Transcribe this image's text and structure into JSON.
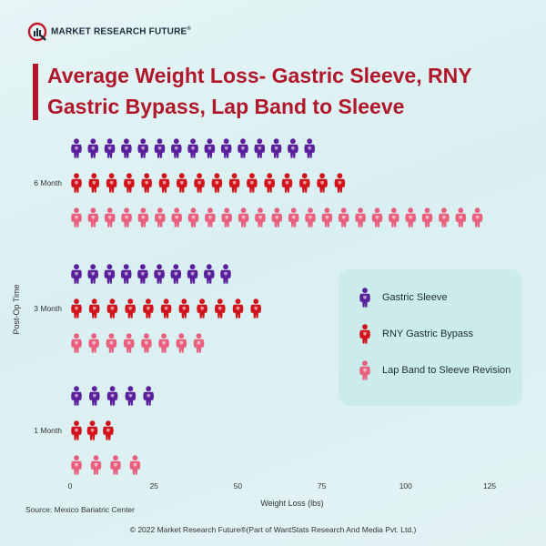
{
  "brand": {
    "name": "MARKET RESEARCH FUTURE",
    "mark": "®"
  },
  "colors": {
    "title": "#b0172a",
    "gastric_sleeve": "#5a1f9a",
    "rny": "#d1141c",
    "lap_band": "#e8607e"
  },
  "source": "Source: Mexico Bariatric Center",
  "copyright": "© 2022 Market Research Future®(Part of WantStats Research And Media Pvt. Ltd.)",
  "chart_data": {
    "type": "bar",
    "orientation": "horizontal",
    "title": "Average Weight Loss- Gastric Sleeve, RNY Gastric Bypass, Lap Band to Sleeve",
    "xlabel": "Weight Loss (lbs)",
    "ylabel": "Post-Op Time",
    "categories": [
      "6 Month",
      "3 Month",
      "1 Month"
    ],
    "xticks": [
      "0",
      "25",
      "50",
      "75",
      "100",
      "125"
    ],
    "xlim": [
      0,
      125
    ],
    "grid": false,
    "legend_position": "right",
    "series": [
      {
        "name": "Gastric Sleeve",
        "color": "#5a1f9a",
        "values": [
          73,
          48,
          25
        ]
      },
      {
        "name": "RNY Gastric Bypass",
        "color": "#d1141c",
        "values": [
          82,
          57,
          13
        ]
      },
      {
        "name": "Lap Band to Sleeve Revision",
        "color": "#e8607e",
        "values": [
          123,
          40,
          21
        ]
      }
    ]
  }
}
